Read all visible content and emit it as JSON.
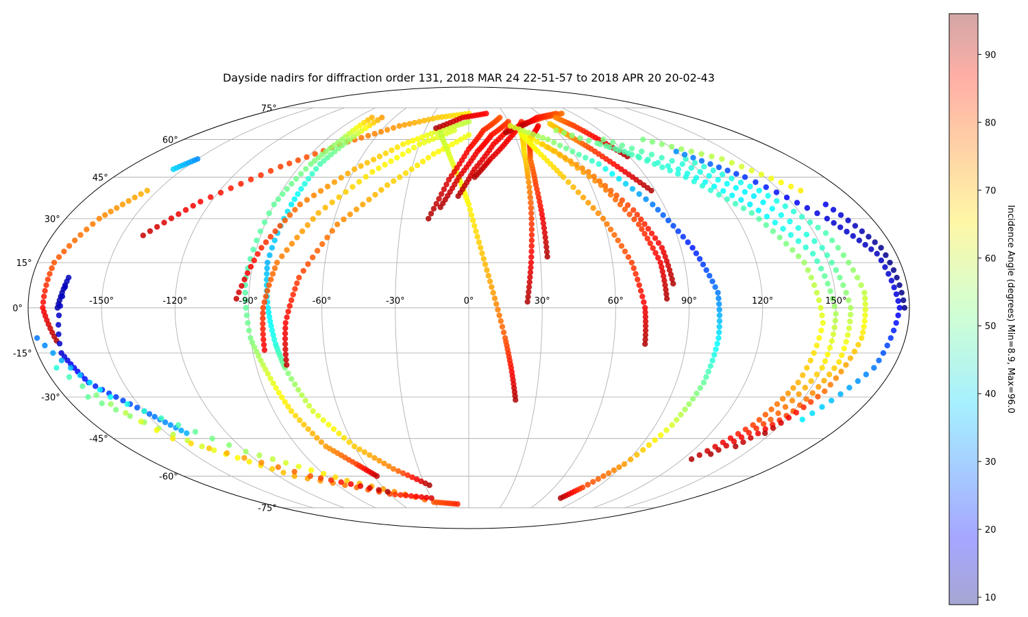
{
  "chart_data": {
    "type": "scatter",
    "projection": "mollweide",
    "title": "Dayside nadirs for diffraction order 131, 2018 MAR 24 22-51-57 to 2018 APR 20 20-02-43",
    "x_ticks": [
      -150,
      -120,
      -90,
      -60,
      -30,
      0,
      30,
      60,
      90,
      120,
      150
    ],
    "x_tick_labels": [
      "-150°",
      "-120°",
      "-90°",
      "-60°",
      "-30°",
      "0°",
      "30°",
      "60°",
      "90°",
      "120°",
      "150°"
    ],
    "y_ticks": [
      -75,
      -60,
      -45,
      -30,
      -15,
      0,
      15,
      30,
      45,
      60,
      75
    ],
    "y_tick_labels": [
      "-75°",
      "-60°",
      "-45°",
      "-30°",
      "-15°",
      "0°",
      "15°",
      "30°",
      "45°",
      "60°",
      "75°"
    ],
    "lon_range": [
      -180,
      180
    ],
    "lat_range": [
      -90,
      90
    ],
    "grid": true,
    "colormap": "jet",
    "color_value": "Incidence Angle (degrees)",
    "colorbar": {
      "label": "Incidence Angle (degrees) Min=8.9, Max=96.0",
      "min": 8.9,
      "max": 96.0,
      "ticks": [
        10,
        20,
        30,
        40,
        50,
        60,
        70,
        80,
        90
      ],
      "placement": "right"
    },
    "tracks": [
      {
        "points": [
          [
            -140.8,
            24.2,
            90
          ],
          [
            -125,
            36,
            85
          ],
          [
            -100,
            49,
            80
          ],
          [
            -75,
            59,
            76
          ],
          [
            -50,
            66,
            72
          ],
          [
            -25,
            70,
            68
          ],
          [
            0,
            72,
            65
          ]
        ]
      },
      {
        "points": [
          [
            -170.3,
            -10.9,
            92
          ],
          [
            -174,
            0,
            85
          ],
          [
            -173,
            15,
            78
          ],
          [
            -165,
            30,
            74
          ],
          [
            -155,
            40,
            70
          ]
        ]
      },
      {
        "points": [
          [
            -168,
            0,
            12
          ],
          [
            -165,
            10,
            14
          ],
          [
            -170,
            -15,
            16
          ],
          [
            -165,
            -25,
            22
          ],
          [
            -150,
            -35,
            28
          ],
          [
            -140,
            -43,
            35
          ]
        ]
      },
      {
        "points": [
          [
            -155,
            48,
            38
          ],
          [
            -150,
            52,
            32
          ]
        ]
      },
      {
        "points": [
          [
            -178,
            -10,
            30
          ],
          [
            -160,
            -30,
            42
          ],
          [
            -120,
            -50,
            55
          ],
          [
            -80,
            -62,
            68
          ],
          [
            -30,
            -72,
            78
          ],
          [
            -10,
            -73,
            82
          ]
        ]
      },
      {
        "points": [
          [
            -170,
            -30,
            50
          ],
          [
            -140,
            -48,
            60
          ],
          [
            -110,
            -60,
            70
          ],
          [
            -60,
            -68,
            80
          ],
          [
            -30,
            -70,
            88
          ]
        ]
      },
      {
        "points": [
          [
            -175,
            -20,
            45
          ],
          [
            -150,
            -45,
            65
          ],
          [
            -100,
            -60,
            78
          ],
          [
            -60,
            -67,
            92
          ]
        ]
      },
      {
        "points": [
          [
            -78,
            70,
            70
          ],
          [
            -80,
            60,
            55
          ],
          [
            -85,
            50,
            52
          ],
          [
            -90,
            35,
            50
          ],
          [
            -92,
            10,
            48
          ],
          [
            -90,
            -10,
            52
          ],
          [
            -86,
            -22,
            60
          ],
          [
            -82,
            -35,
            66
          ],
          [
            -75,
            -48,
            72
          ],
          [
            -65,
            -55,
            80
          ],
          [
            -58,
            -60,
            90
          ]
        ]
      },
      {
        "points": [
          [
            -70,
            70,
            72
          ],
          [
            -75,
            60,
            55
          ],
          [
            -80,
            50,
            48
          ],
          [
            -82,
            35,
            40
          ],
          [
            -84,
            15,
            35
          ],
          [
            -82,
            0,
            40
          ],
          [
            -80,
            -12,
            44
          ],
          [
            -78,
            -20,
            52
          ],
          [
            -72,
            -35,
            60
          ],
          [
            -60,
            -48,
            68
          ],
          [
            -45,
            -57,
            75
          ],
          [
            -27,
            -64,
            92
          ]
        ]
      },
      {
        "points": [
          [
            -95,
            3,
            90
          ],
          [
            -88,
            20,
            82
          ],
          [
            -78,
            35,
            75
          ],
          [
            -60,
            48,
            70
          ],
          [
            -40,
            58,
            65
          ],
          [
            -20,
            64,
            60
          ],
          [
            0,
            68,
            58
          ]
        ]
      },
      {
        "points": [
          [
            -85,
            -14,
            86
          ],
          [
            -84,
            0,
            80
          ],
          [
            -80,
            15,
            75
          ],
          [
            -68,
            32,
            70
          ],
          [
            -50,
            47,
            65
          ],
          [
            -30,
            58,
            62
          ],
          [
            -10,
            64,
            60
          ]
        ]
      },
      {
        "points": [
          [
            -77,
            -19,
            90
          ],
          [
            -75,
            -5,
            85
          ],
          [
            -70,
            10,
            80
          ],
          [
            -58,
            28,
            74
          ],
          [
            -40,
            42,
            68
          ],
          [
            -20,
            54,
            64
          ],
          [
            0,
            62,
            62
          ]
        ]
      },
      {
        "points": [
          [
            -19,
            63,
            58
          ],
          [
            -12,
            55,
            60
          ],
          [
            -5,
            45,
            62
          ],
          [
            0,
            35,
            64
          ],
          [
            5,
            20,
            68
          ],
          [
            10,
            5,
            72
          ],
          [
            15,
            -10,
            78
          ],
          [
            18,
            -20,
            84
          ],
          [
            21,
            -31,
            92
          ]
        ]
      },
      {
        "points": [
          [
            -23,
            65,
            92
          ],
          [
            -5,
            70,
            88
          ],
          [
            15,
            72,
            85
          ]
        ]
      },
      {
        "points": [
          [
            -18,
            30,
            92
          ],
          [
            -10,
            44,
            88
          ],
          [
            0,
            56,
            85
          ],
          [
            10,
            64,
            82
          ],
          [
            25,
            70,
            78
          ]
        ]
      },
      {
        "points": [
          [
            -13,
            34,
            92
          ],
          [
            -5,
            45,
            88
          ],
          [
            5,
            55,
            86
          ],
          [
            15,
            62,
            84
          ],
          [
            30,
            68,
            80
          ]
        ]
      },
      {
        "points": [
          [
            -5,
            38,
            92
          ],
          [
            3,
            48,
            88
          ],
          [
            15,
            58,
            86
          ],
          [
            30,
            66,
            82
          ]
        ]
      },
      {
        "points": [
          [
            3,
            45,
            92
          ],
          [
            12,
            52,
            88
          ],
          [
            25,
            60,
            86
          ],
          [
            40,
            68,
            82
          ]
        ]
      },
      {
        "points": [
          [
            24,
            2,
            92
          ],
          [
            26,
            15,
            86
          ],
          [
            28,
            30,
            80
          ],
          [
            30,
            45,
            72
          ],
          [
            32,
            55,
            66
          ],
          [
            35,
            62,
            68
          ]
        ]
      },
      {
        "points": [
          [
            33,
            17,
            92
          ],
          [
            33,
            30,
            86
          ],
          [
            33,
            42,
            80
          ],
          [
            34,
            52,
            76
          ],
          [
            38,
            60,
            84
          ],
          [
            50,
            66,
            86
          ]
        ]
      },
      {
        "points": [
          [
            25,
            63,
            92
          ],
          [
            40,
            67,
            84
          ],
          [
            60,
            70,
            80
          ],
          [
            80,
            72,
            76
          ]
        ]
      },
      {
        "points": [
          [
            38,
            66,
            92
          ],
          [
            55,
            70,
            84
          ],
          [
            75,
            72,
            78
          ]
        ]
      },
      {
        "points": [
          [
            73,
            -12,
            92
          ],
          [
            72,
            0,
            86
          ],
          [
            68,
            15,
            80
          ],
          [
            60,
            30,
            74
          ],
          [
            48,
            45,
            68
          ],
          [
            40,
            55,
            64
          ],
          [
            35,
            62,
            62
          ]
        ]
      },
      {
        "points": [
          [
            81,
            3,
            92
          ],
          [
            80,
            15,
            86
          ],
          [
            75,
            28,
            80
          ],
          [
            65,
            42,
            74
          ],
          [
            50,
            55,
            68
          ],
          [
            35,
            63,
            62
          ]
        ]
      },
      {
        "points": [
          [
            84,
            8,
            92
          ],
          [
            82,
            20,
            86
          ],
          [
            75,
            33,
            80
          ],
          [
            62,
            47,
            74
          ],
          [
            45,
            58,
            68
          ]
        ]
      },
      {
        "points": [
          [
            88,
            40,
            92
          ],
          [
            80,
            48,
            86
          ],
          [
            72,
            56,
            80
          ],
          [
            65,
            62,
            72
          ],
          [
            60,
            67,
            68
          ]
        ]
      },
      {
        "points": [
          [
            89,
            53,
            92
          ],
          [
            82,
            60,
            86
          ],
          [
            76,
            66,
            80
          ],
          [
            70,
            70,
            74
          ]
        ]
      },
      {
        "points": [
          [
            74,
            -70,
            92
          ],
          [
            80,
            -65,
            80
          ],
          [
            90,
            -55,
            72
          ],
          [
            98,
            -40,
            60
          ],
          [
            102,
            -25,
            50
          ],
          [
            103,
            -10,
            40
          ],
          [
            102,
            5,
            30
          ],
          [
            95,
            20,
            22
          ],
          [
            85,
            35,
            30
          ],
          [
            70,
            50,
            45
          ],
          [
            50,
            60,
            55
          ],
          [
            30,
            66,
            60
          ]
        ]
      },
      {
        "points": [
          [
            125,
            -53,
            92
          ],
          [
            137,
            -40,
            80
          ],
          [
            143,
            -25,
            70
          ],
          [
            145,
            -5,
            62
          ],
          [
            140,
            15,
            55
          ],
          [
            128,
            32,
            48
          ],
          [
            110,
            45,
            44
          ],
          [
            90,
            55,
            48
          ],
          [
            60,
            64,
            55
          ]
        ]
      },
      {
        "points": [
          [
            132,
            -51,
            92
          ],
          [
            143,
            -38,
            78
          ],
          [
            150,
            -20,
            66
          ],
          [
            150,
            -2,
            56
          ],
          [
            145,
            18,
            46
          ],
          [
            130,
            35,
            40
          ],
          [
            110,
            48,
            44
          ],
          [
            80,
            58,
            50
          ]
        ]
      },
      {
        "points": [
          [
            140,
            -48,
            92
          ],
          [
            150,
            -35,
            78
          ],
          [
            156,
            -18,
            66
          ],
          [
            156,
            0,
            56
          ],
          [
            150,
            20,
            46
          ],
          [
            135,
            38,
            40
          ],
          [
            115,
            50,
            45
          ],
          [
            85,
            60,
            52
          ]
        ]
      },
      {
        "points": [
          [
            147,
            -43,
            92
          ],
          [
            157,
            -28,
            76
          ],
          [
            162,
            -10,
            66
          ],
          [
            162,
            5,
            58
          ],
          [
            155,
            25,
            48
          ],
          [
            140,
            40,
            42
          ],
          [
            120,
            52,
            46
          ]
        ]
      },
      {
        "points": [
          [
            158,
            -38,
            40
          ],
          [
            172,
            -20,
            30
          ],
          [
            176,
            0,
            18
          ],
          [
            172,
            18,
            14
          ],
          [
            160,
            30,
            16
          ],
          [
            140,
            45,
            24
          ],
          [
            120,
            55,
            32
          ]
        ]
      },
      {
        "points": [
          [
            160,
            40,
            65
          ],
          [
            140,
            52,
            58
          ],
          [
            110,
            60,
            52
          ]
        ]
      },
      {
        "points": [
          [
            178,
            0,
            10
          ],
          [
            175,
            20,
            10
          ],
          [
            165,
            35,
            18
          ]
        ]
      }
    ]
  }
}
